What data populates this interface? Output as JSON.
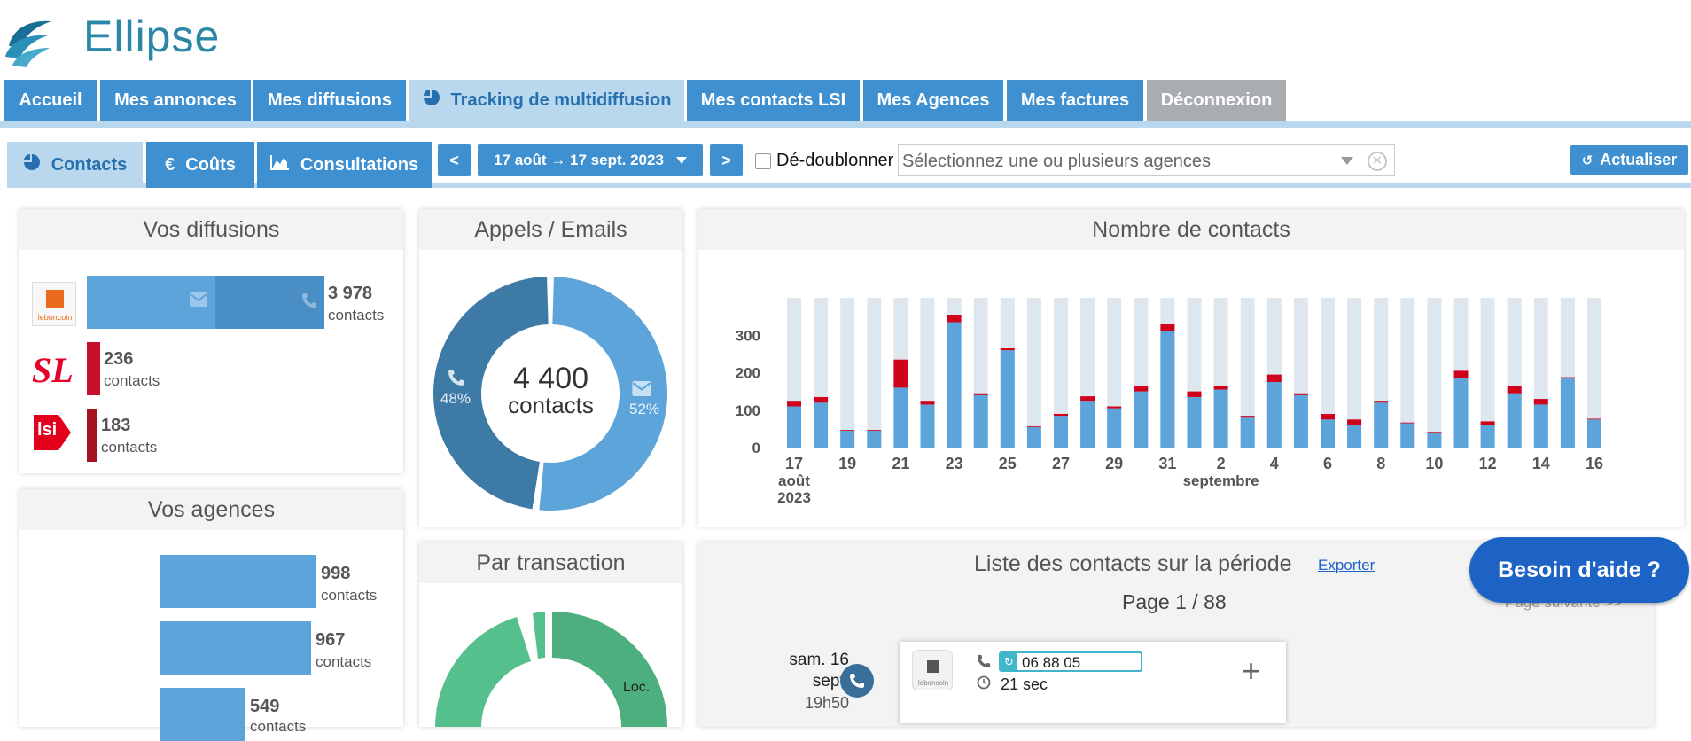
{
  "app": {
    "title": "Ellipse"
  },
  "nav": {
    "tabs": [
      {
        "label": "Accueil"
      },
      {
        "label": "Mes annonces"
      },
      {
        "label": "Mes diffusions"
      },
      {
        "label": "Tracking de multidiffusion",
        "active": true
      },
      {
        "label": "Mes contacts LSI"
      },
      {
        "label": "Mes Agences"
      },
      {
        "label": "Mes factures"
      },
      {
        "label": "Déconnexion"
      }
    ]
  },
  "toolbar": {
    "tabs": [
      {
        "label": "Contacts",
        "icon": "pie-chart-icon",
        "active": true
      },
      {
        "label": "Coûts",
        "icon": "euro-icon"
      },
      {
        "label": "Consultations",
        "icon": "area-chart-icon"
      }
    ],
    "prev_label": "<",
    "next_label": ">",
    "date_range": "17 août → 17 sept. 2023",
    "dedup_label": "Dé-doublonner",
    "dedup_checked": false,
    "agency_placeholder": "Sélectionnez une ou plusieurs agences",
    "refresh_label": "Actualiser"
  },
  "diffusions": {
    "title": "Vos diffusions",
    "items": [
      {
        "portal": "leboncoin",
        "logo_text": "leboncoin",
        "count": "3 978",
        "unit": "contacts",
        "email_share": 0.54
      },
      {
        "portal": "seloger",
        "logo_text": "SL",
        "count": "236",
        "unit": "contacts"
      },
      {
        "portal": "lsi",
        "logo_text": "lsi",
        "count": "183",
        "unit": "contacts"
      }
    ]
  },
  "appels": {
    "title": "Appels / Emails",
    "total": "4 400",
    "unit": "contacts",
    "phone_pct": "48%",
    "email_pct": "52%",
    "phone_share": 0.48,
    "email_share": 0.52
  },
  "contacts_chart": {
    "title": "Nombre de contacts"
  },
  "chart_data": {
    "type": "bar",
    "stacked": true,
    "ylim": [
      0,
      400
    ],
    "yticks": [
      "0",
      "100",
      "200",
      "300"
    ],
    "xticks": [
      "17",
      "19",
      "21",
      "23",
      "25",
      "27",
      "29",
      "31",
      "2",
      "4",
      "6",
      "8",
      "10",
      "12",
      "14",
      "16"
    ],
    "month_labels": [
      {
        "text": "août",
        "year": "2023"
      },
      {
        "text": "septembre"
      }
    ],
    "categories": [
      "17",
      "18",
      "19",
      "20",
      "21",
      "22",
      "23",
      "24",
      "25",
      "26",
      "27",
      "28",
      "29",
      "30",
      "31",
      "1",
      "2",
      "3",
      "4",
      "5",
      "6",
      "7",
      "8",
      "9",
      "10",
      "11",
      "12",
      "13",
      "14",
      "15",
      "16"
    ],
    "series": [
      {
        "values": [
          110,
          120,
          45,
          45,
          160,
          115,
          335,
          140,
          260,
          55,
          85,
          125,
          105,
          150,
          310,
          135,
          155,
          80,
          175,
          140,
          75,
          60,
          120,
          65,
          40,
          185,
          60,
          145,
          115,
          185,
          75
        ]
      },
      {
        "values": [
          15,
          15,
          2,
          2,
          75,
          10,
          20,
          5,
          5,
          2,
          5,
          12,
          5,
          15,
          20,
          15,
          10,
          5,
          20,
          5,
          15,
          15,
          5,
          2,
          2,
          20,
          10,
          20,
          15,
          3,
          2
        ]
      }
    ],
    "colors": {
      "main": "#5da4db",
      "extra": "#d0021b",
      "background": "#dfe7ee"
    }
  },
  "agences": {
    "title": "Vos agences",
    "items": [
      {
        "count": "998",
        "unit": "contacts"
      },
      {
        "count": "967",
        "unit": "contacts"
      },
      {
        "count": "549",
        "unit": "contacts"
      }
    ]
  },
  "transaction": {
    "title": "Par transaction",
    "label_loc": "Loc."
  },
  "contact_list": {
    "title": "Liste des contacts sur la période",
    "export_label": "Exporter",
    "page_label": "Page 1 / 88",
    "next_page_label": "Page suivante >>",
    "entry": {
      "day": "sam. 16",
      "month": "sept.",
      "time": "19h50",
      "portal": "leboncoin",
      "phone": "06 88 05",
      "duration": "21 sec",
      "add_label": "+"
    }
  },
  "help": {
    "label": "Besoin d'aide ?"
  }
}
